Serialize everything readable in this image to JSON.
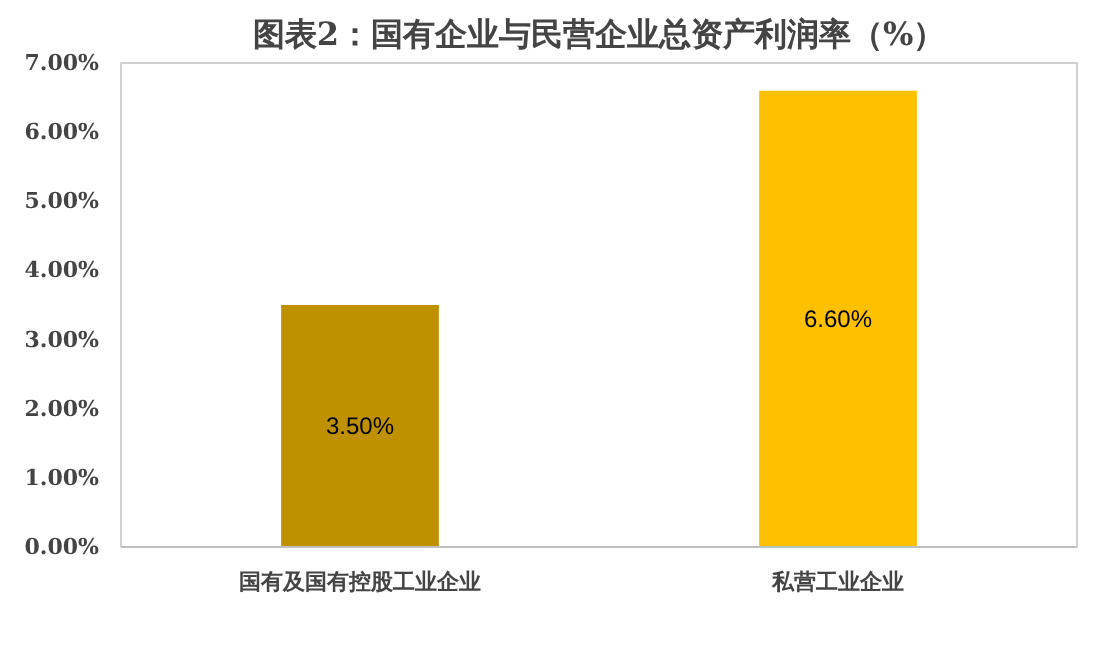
{
  "chart_data": {
    "type": "bar",
    "title": "图表2：国有企业与民营企业总资产利润率（%）",
    "categories": [
      "国有及国有控股工业企业",
      "私营工业企业"
    ],
    "values": [
      3.5,
      6.6
    ],
    "colors": [
      "#bf9000",
      "#ffc000"
    ],
    "value_labels": [
      "3.50%",
      "6.60%"
    ],
    "ylim": [
      0,
      7
    ],
    "yticks": [
      {
        "value": 0,
        "label": "0.00%"
      },
      {
        "value": 1,
        "label": "1.00%"
      },
      {
        "value": 2,
        "label": "2.00%"
      },
      {
        "value": 3,
        "label": "3.00%"
      },
      {
        "value": 4,
        "label": "4.00%"
      },
      {
        "value": 5,
        "label": "5.00%"
      },
      {
        "value": 6,
        "label": "6.00%"
      },
      {
        "value": 7,
        "label": "7.00%"
      }
    ],
    "grid": false
  }
}
